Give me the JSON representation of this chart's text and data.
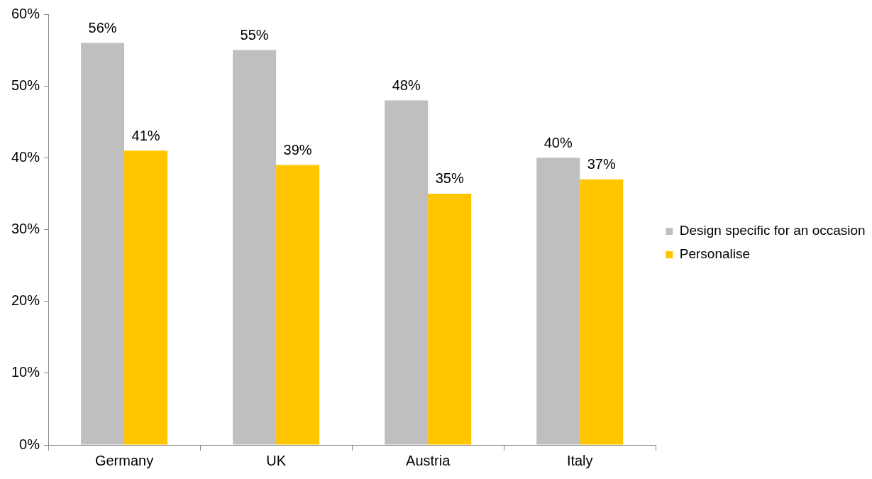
{
  "chart_data": {
    "type": "bar",
    "categories": [
      "Germany",
      "UK",
      "Austria",
      "Italy"
    ],
    "series": [
      {
        "name": "Design specific for an occasion",
        "color": "#bfbfbf",
        "values": [
          56,
          55,
          48,
          40
        ],
        "value_labels": [
          "56%",
          "55%",
          "48%",
          "40%"
        ]
      },
      {
        "name": "Personalise",
        "color": "#ffc600",
        "values": [
          41,
          39,
          35,
          37
        ],
        "value_labels": [
          "41%",
          "39%",
          "35%",
          "37%"
        ]
      }
    ],
    "ylim": [
      0,
      60
    ],
    "yticks": [
      {
        "value": 0,
        "label": "0%"
      },
      {
        "value": 10,
        "label": "10%"
      },
      {
        "value": 20,
        "label": "20%"
      },
      {
        "value": 30,
        "label": "30%"
      },
      {
        "value": 40,
        "label": "40%"
      },
      {
        "value": 50,
        "label": "50%"
      },
      {
        "value": 60,
        "label": "60%"
      }
    ],
    "legend": "right"
  }
}
